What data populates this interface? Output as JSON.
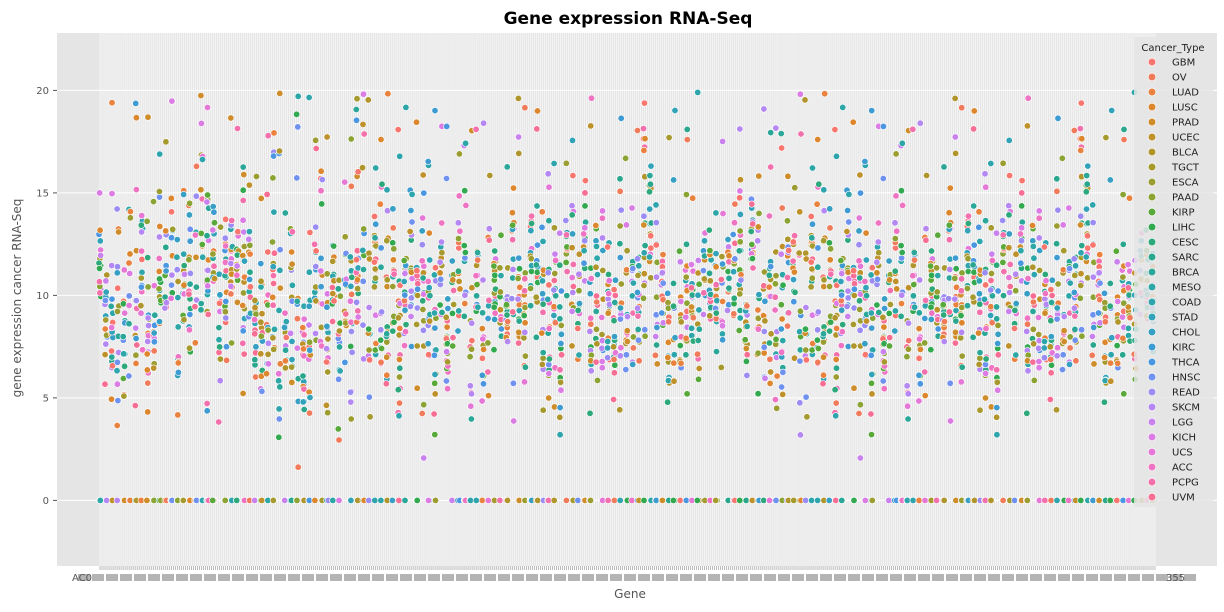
{
  "chart_data": {
    "type": "scatter",
    "title": "Gene expression RNA-Seq",
    "xlabel": "Gene",
    "ylabel": "gene expression cancer RNA-Seq",
    "ylim": [
      -3.2,
      22.8
    ],
    "yticks": [
      0,
      5,
      10,
      15,
      20
    ],
    "grid": true,
    "legend_title": "Cancer_Type",
    "legend_position": "top-right",
    "x_tick_labels_visible": [
      "AC0",
      "355"
    ],
    "series": [
      {
        "name": "GBM",
        "color": "#f8766d"
      },
      {
        "name": "OV",
        "color": "#f07b5a"
      },
      {
        "name": "LUAD",
        "color": "#e8823e"
      },
      {
        "name": "LUSC",
        "color": "#dc872e"
      },
      {
        "name": "PRAD",
        "color": "#cf8c2a"
      },
      {
        "name": "UCEC",
        "color": "#bf912a"
      },
      {
        "name": "BLCA",
        "color": "#b0952c"
      },
      {
        "name": "TGCT",
        "color": "#a69a2f"
      },
      {
        "name": "ESCA",
        "color": "#9b9d31"
      },
      {
        "name": "PAAD",
        "color": "#8aa333"
      },
      {
        "name": "KIRP",
        "color": "#59a93a"
      },
      {
        "name": "LIHC",
        "color": "#33a94f"
      },
      {
        "name": "CESC",
        "color": "#2da87b"
      },
      {
        "name": "SARC",
        "color": "#2aa68d"
      },
      {
        "name": "BRCA",
        "color": "#2ba79a"
      },
      {
        "name": "MESO",
        "color": "#2ca6a6"
      },
      {
        "name": "COAD",
        "color": "#2ea4ad"
      },
      {
        "name": "STAD",
        "color": "#31a2b8"
      },
      {
        "name": "CHOL",
        "color": "#379fc4"
      },
      {
        "name": "KIRC",
        "color": "#3e9bd1"
      },
      {
        "name": "THCA",
        "color": "#4a96e0"
      },
      {
        "name": "HNSC",
        "color": "#6f91ef"
      },
      {
        "name": "READ",
        "color": "#9b8cf3"
      },
      {
        "name": "SKCM",
        "color": "#b487f2"
      },
      {
        "name": "LGG",
        "color": "#c981ee"
      },
      {
        "name": "KICH",
        "color": "#db7be4"
      },
      {
        "name": "UCS",
        "color": "#e577d7"
      },
      {
        "name": "ACC",
        "color": "#ee73c3"
      },
      {
        "name": "PCPG",
        "color": "#f270ac"
      },
      {
        "name": "UVM",
        "color": "#f66e93"
      }
    ]
  }
}
